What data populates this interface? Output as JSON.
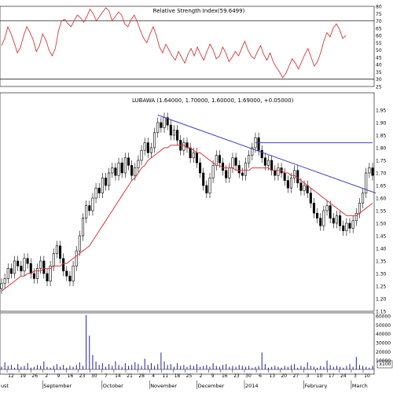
{
  "chart_data": [
    {
      "type": "line",
      "title": "Relative Strength Index(59.6499)",
      "ylim": [
        25,
        80
      ],
      "y_ticks": [
        80,
        75,
        70,
        65,
        60,
        55,
        50,
        45,
        40,
        35,
        30,
        25
      ],
      "reference_lines": [
        70,
        30
      ],
      "series": [
        {
          "color": "#d43a3a",
          "values": [
            53,
            58,
            66,
            61,
            55,
            48,
            52,
            60,
            66,
            62,
            57,
            49,
            53,
            61,
            57,
            50,
            46,
            51,
            63,
            70,
            71,
            68,
            66,
            70,
            74,
            72,
            69,
            73,
            78,
            75,
            70,
            73,
            76,
            79,
            77,
            70,
            73,
            76,
            74,
            68,
            66,
            71,
            74,
            69,
            63,
            58,
            55,
            61,
            66,
            60,
            52,
            48,
            54,
            50,
            46,
            43,
            49,
            45,
            41,
            47,
            51,
            46,
            52,
            47,
            43,
            49,
            54,
            50,
            44,
            46,
            52,
            48,
            42,
            45,
            49,
            46,
            51,
            56,
            50,
            46,
            44,
            49,
            53,
            47,
            43,
            48,
            42,
            38,
            35,
            31,
            34,
            39,
            44,
            41,
            37,
            42,
            47,
            51,
            45,
            39,
            42,
            48,
            56,
            62,
            59,
            65,
            68,
            64,
            58,
            60
          ]
        }
      ]
    },
    {
      "type": "candlestick",
      "title": "LUBAWA (1.64000, 1.70000, 1.60000, 1.69000, +0.05000)",
      "ylim": [
        1.15,
        1.95
      ],
      "y_ticks": [
        1.95,
        1.9,
        1.85,
        1.8,
        1.75,
        1.7,
        1.65,
        1.6,
        1.55,
        1.5,
        1.45,
        1.4,
        1.35,
        1.3,
        1.25,
        1.2,
        1.15
      ],
      "close": [
        1.26,
        1.28,
        1.32,
        1.3,
        1.35,
        1.33,
        1.31,
        1.36,
        1.34,
        1.3,
        1.28,
        1.32,
        1.35,
        1.3,
        1.27,
        1.33,
        1.38,
        1.41,
        1.36,
        1.31,
        1.29,
        1.27,
        1.33,
        1.39,
        1.45,
        1.52,
        1.57,
        1.55,
        1.6,
        1.64,
        1.62,
        1.68,
        1.65,
        1.7,
        1.72,
        1.69,
        1.74,
        1.7,
        1.76,
        1.73,
        1.69,
        1.72,
        1.75,
        1.79,
        1.82,
        1.78,
        1.8,
        1.86,
        1.9,
        1.88,
        1.92,
        1.89,
        1.85,
        1.87,
        1.83,
        1.79,
        1.82,
        1.8,
        1.76,
        1.78,
        1.74,
        1.7,
        1.65,
        1.62,
        1.68,
        1.73,
        1.77,
        1.74,
        1.71,
        1.68,
        1.72,
        1.76,
        1.73,
        1.7,
        1.69,
        1.74,
        1.77,
        1.8,
        1.84,
        1.79,
        1.76,
        1.73,
        1.75,
        1.71,
        1.69,
        1.72,
        1.7,
        1.67,
        1.64,
        1.68,
        1.71,
        1.66,
        1.63,
        1.65,
        1.62,
        1.58,
        1.54,
        1.52,
        1.49,
        1.55,
        1.57,
        1.52,
        1.5,
        1.53,
        1.49,
        1.47,
        1.5,
        1.48,
        1.51,
        1.54,
        1.58,
        1.62,
        1.7,
        1.72,
        1.69
      ],
      "overlays": [
        {
          "kind": "moving-average",
          "color": "#d43a3a",
          "values": [
            1.23,
            1.24,
            1.25,
            1.26,
            1.27,
            1.28,
            1.29,
            1.29,
            1.3,
            1.3,
            1.31,
            1.31,
            1.31,
            1.32,
            1.32,
            1.32,
            1.33,
            1.33,
            1.33,
            1.34,
            1.34,
            1.35,
            1.36,
            1.37,
            1.38,
            1.39,
            1.4,
            1.41,
            1.43,
            1.45,
            1.47,
            1.49,
            1.51,
            1.53,
            1.55,
            1.57,
            1.59,
            1.61,
            1.63,
            1.65,
            1.67,
            1.68,
            1.7,
            1.72,
            1.73,
            1.75,
            1.76,
            1.77,
            1.78,
            1.79,
            1.8,
            1.8,
            1.81,
            1.81,
            1.81,
            1.81,
            1.81,
            1.8,
            1.8,
            1.79,
            1.78,
            1.78,
            1.77,
            1.76,
            1.75,
            1.74,
            1.73,
            1.73,
            1.72,
            1.72,
            1.72,
            1.72,
            1.71,
            1.71,
            1.71,
            1.71,
            1.71,
            1.72,
            1.72,
            1.72,
            1.72,
            1.72,
            1.72,
            1.71,
            1.71,
            1.71,
            1.71,
            1.7,
            1.7,
            1.69,
            1.69,
            1.68,
            1.67,
            1.66,
            1.65,
            1.64,
            1.63,
            1.62,
            1.61,
            1.6,
            1.59,
            1.58,
            1.57,
            1.56,
            1.55,
            1.54,
            1.53,
            1.53,
            1.53,
            1.53,
            1.54,
            1.55,
            1.56,
            1.57,
            1.58
          ]
        },
        {
          "kind": "trendline",
          "color": "#4040c0",
          "points": [
            [
              48,
              1.93
            ],
            [
              115,
              1.62
            ]
          ]
        },
        {
          "kind": "horizontal-line",
          "color": "#4040c0",
          "y": 1.82,
          "from": 78
        }
      ]
    },
    {
      "type": "bar",
      "ylim": [
        0,
        60000
      ],
      "y_ticks": [
        60000,
        50000,
        40000,
        30000,
        20000,
        10000
      ],
      "unit_label": "x100",
      "values": [
        3000,
        8000,
        4000,
        5000,
        2000,
        6000,
        3000,
        4000,
        7000,
        2000,
        3000,
        5000,
        4000,
        9000,
        3000,
        2000,
        4000,
        6000,
        3000,
        5000,
        2000,
        4000,
        3000,
        5000,
        8000,
        4000,
        61000,
        38000,
        16000,
        9000,
        5000,
        7000,
        3000,
        6000,
        4000,
        9000,
        5000,
        3000,
        7000,
        4000,
        5000,
        8000,
        6000,
        4000,
        12000,
        5000,
        7000,
        4000,
        6000,
        19000,
        9000,
        5000,
        6000,
        3000,
        7000,
        4000,
        5000,
        3000,
        5000,
        4000,
        6000,
        3000,
        4000,
        5000,
        3000,
        7000,
        4000,
        3000,
        5000,
        6000,
        3000,
        4000,
        3000,
        5000,
        4000,
        3000,
        4000,
        2000,
        3000,
        4000,
        19000,
        6000,
        2000,
        3000,
        4000,
        3000,
        2000,
        4000,
        3000,
        5000,
        6000,
        2000,
        4000,
        3000,
        8000,
        4000,
        3000,
        2000,
        4000,
        3000,
        10000,
        5000,
        3000,
        4000,
        3000,
        2000,
        4000,
        6000,
        3000,
        14000,
        5000,
        4000,
        3000,
        2000,
        4000
      ]
    }
  ],
  "x_axis": {
    "day_labels": [
      "12",
      "19",
      "26",
      "2",
      "9",
      "16",
      "23",
      "30",
      "7",
      "14",
      "21",
      "28",
      "4",
      "11",
      "18",
      "25",
      "2",
      "9",
      "16",
      "23",
      "30",
      "6",
      "13",
      "20",
      "27",
      "3",
      "10",
      "17",
      "24",
      "3",
      "10"
    ],
    "month_labels": [
      "ust",
      "September",
      "October",
      "November",
      "December",
      "2014",
      "February",
      "March"
    ]
  }
}
